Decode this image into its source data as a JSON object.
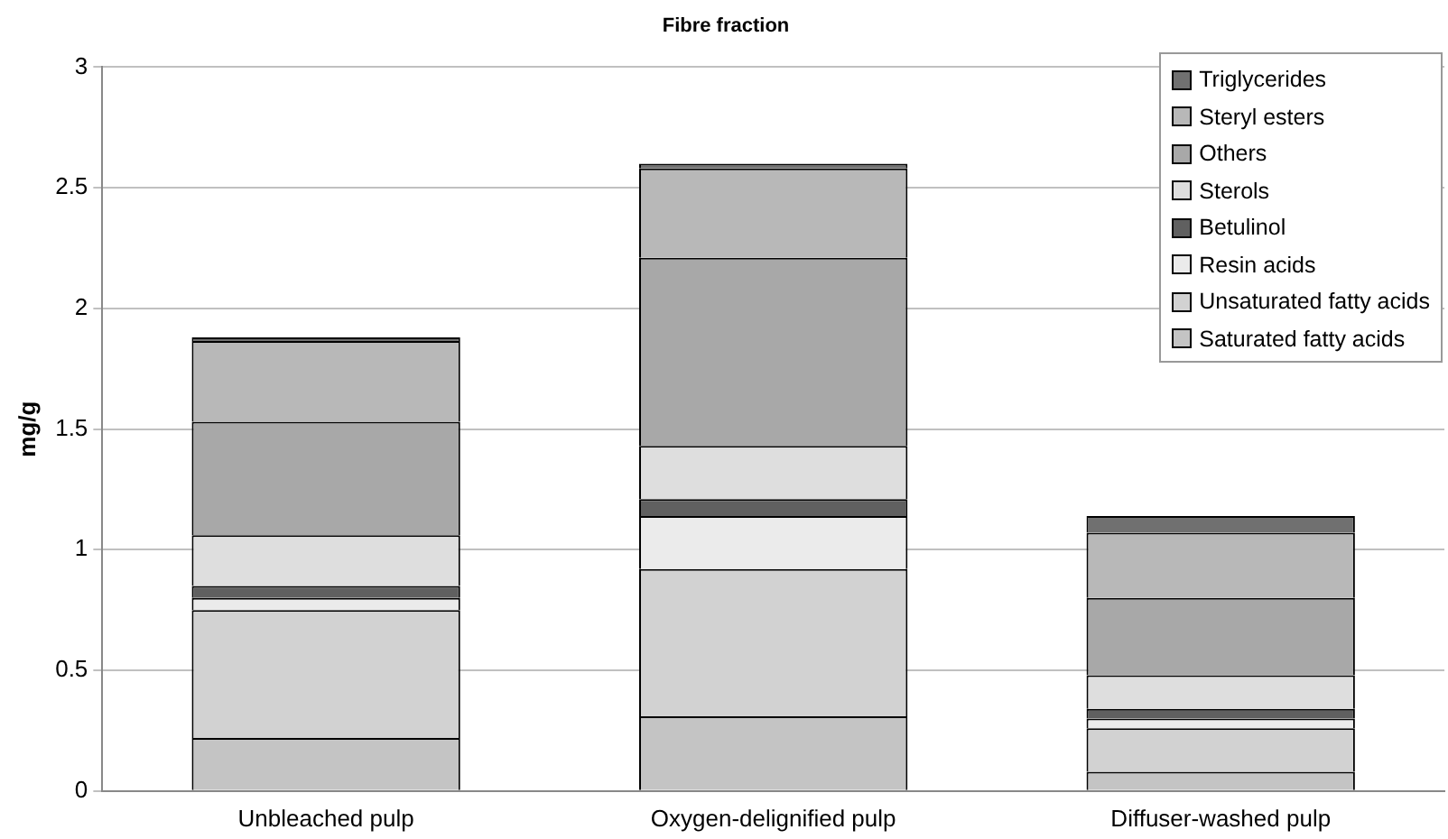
{
  "chart_data": {
    "type": "bar",
    "title": "Fibre fraction",
    "ylabel": "mg/g",
    "stacked": true,
    "categories": [
      "Unbleached pulp",
      "Oxygen-delignified pulp",
      "Diffuser-washed pulp"
    ],
    "series": [
      {
        "name": "Saturated fatty acids",
        "color": "#c4c4c4",
        "values": [
          0.22,
          0.31,
          0.08
        ]
      },
      {
        "name": "Unsaturated fatty acids",
        "color": "#d2d2d2",
        "values": [
          0.53,
          0.61,
          0.18
        ]
      },
      {
        "name": "Resin acids",
        "color": "#ebebeb",
        "values": [
          0.05,
          0.22,
          0.04
        ]
      },
      {
        "name": "Betulinol",
        "color": "#606060",
        "values": [
          0.05,
          0.07,
          0.04
        ]
      },
      {
        "name": "Sterols",
        "color": "#dedede",
        "values": [
          0.21,
          0.22,
          0.14
        ]
      },
      {
        "name": "Others",
        "color": "#a8a8a8",
        "values": [
          0.47,
          0.78,
          0.32
        ]
      },
      {
        "name": "Steryl esters",
        "color": "#b8b8b8",
        "values": [
          0.335,
          0.37,
          0.27
        ]
      },
      {
        "name": "Triglycerides",
        "color": "#707070",
        "values": [
          0.015,
          0.02,
          0.07
        ]
      }
    ],
    "ylim": [
      0,
      3
    ],
    "yticks": [
      0,
      0.5,
      1,
      1.5,
      2,
      2.5,
      3
    ],
    "grid": "y",
    "legend": "top right"
  }
}
